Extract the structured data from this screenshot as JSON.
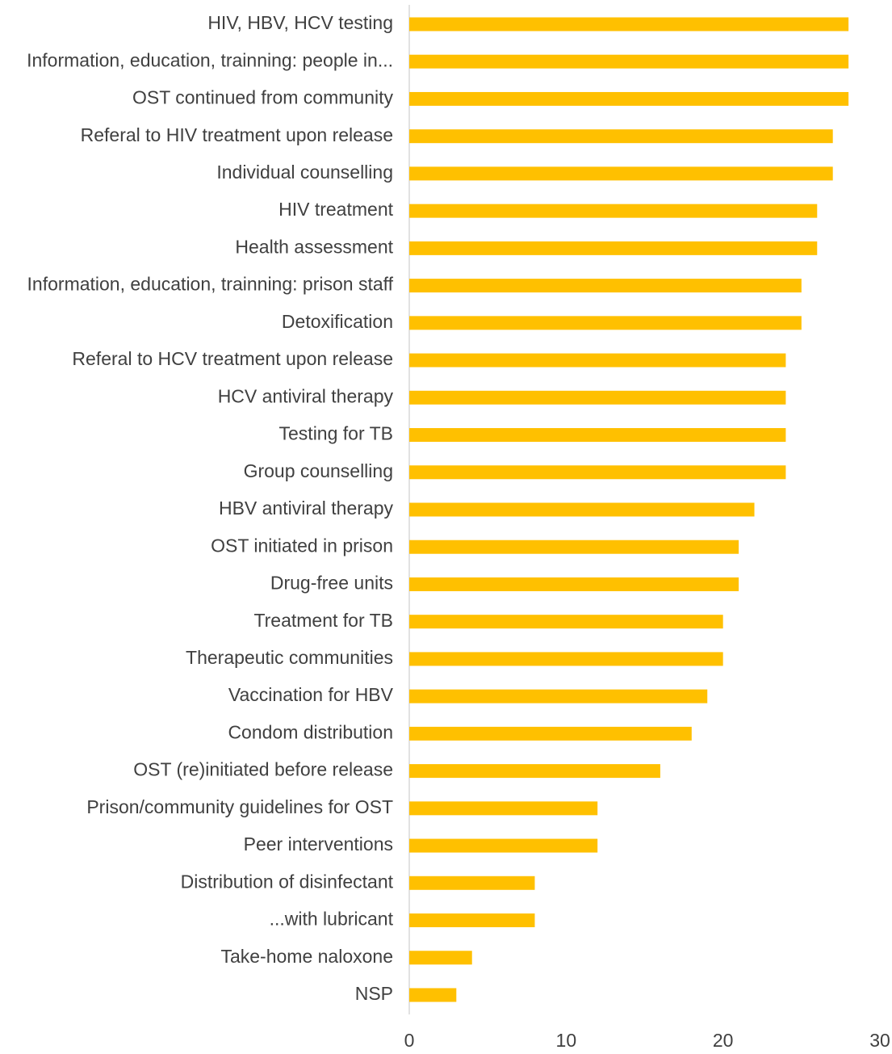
{
  "chart_data": {
    "type": "barh",
    "categories": [
      "HIV, HBV, HCV testing",
      "Information, education, trainning: people in...",
      "OST continued from community",
      "Referal to HIV treatment upon release",
      "Individual counselling",
      "HIV treatment",
      "Health assessment",
      "Information, education, trainning: prison staff",
      "Detoxification",
      "Referal to HCV treatment upon release",
      "HCV antiviral therapy",
      "Testing for TB",
      "Group counselling",
      "HBV antiviral therapy",
      "OST initiated in prison",
      "Drug-free units",
      "Treatment for TB",
      "Therapeutic communities",
      "Vaccination for HBV",
      "Condom distribution",
      "OST (re)initiated before release",
      "Prison/community guidelines for OST",
      "Peer interventions",
      "Distribution of disinfectant",
      "...with lubricant",
      "Take-home naloxone",
      "NSP"
    ],
    "values": [
      28,
      28,
      28,
      27,
      27,
      26,
      26,
      25,
      25,
      24,
      24,
      24,
      24,
      22,
      21,
      21,
      20,
      20,
      19,
      18,
      16,
      12,
      12,
      8,
      8,
      4,
      3
    ],
    "color": "#FFC000",
    "xlim": [
      0,
      30
    ],
    "xticks": [
      0,
      10,
      20,
      30
    ],
    "grid": false
  }
}
